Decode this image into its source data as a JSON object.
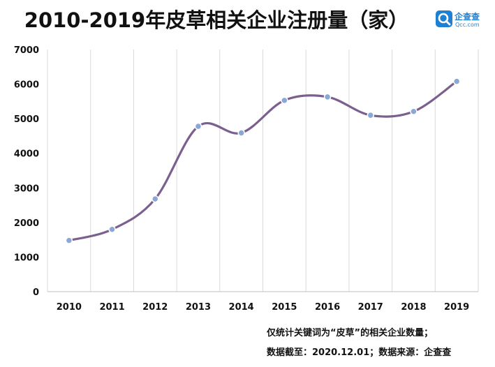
{
  "title": "2010-2019年皮草相关企业注册量（家）",
  "logo": {
    "name": "企查查",
    "domain": "Qcc.com",
    "color": "#1f7fd0"
  },
  "notes": {
    "line1": "仅统计关键词为“皮草”的相关企业数量；",
    "line2": "数据截至：2020.12.01；数据来源：企查查"
  },
  "chart_data": {
    "type": "line",
    "title": "2010-2019年皮草相关企业注册量（家）",
    "xlabel": "",
    "ylabel": "",
    "categories": [
      "2010",
      "2011",
      "2012",
      "2013",
      "2014",
      "2015",
      "2016",
      "2017",
      "2018",
      "2019"
    ],
    "values": [
      1480,
      1800,
      2680,
      4780,
      4590,
      5530,
      5630,
      5100,
      5210,
      6080
    ],
    "ylim": [
      0,
      7000
    ],
    "yticks": [
      0,
      1000,
      2000,
      3000,
      4000,
      5000,
      6000,
      7000
    ],
    "smooth": true,
    "grid": "vertical",
    "legend": "none",
    "line_color": "#7a5f8f",
    "marker_color": "#8aa8d6"
  }
}
